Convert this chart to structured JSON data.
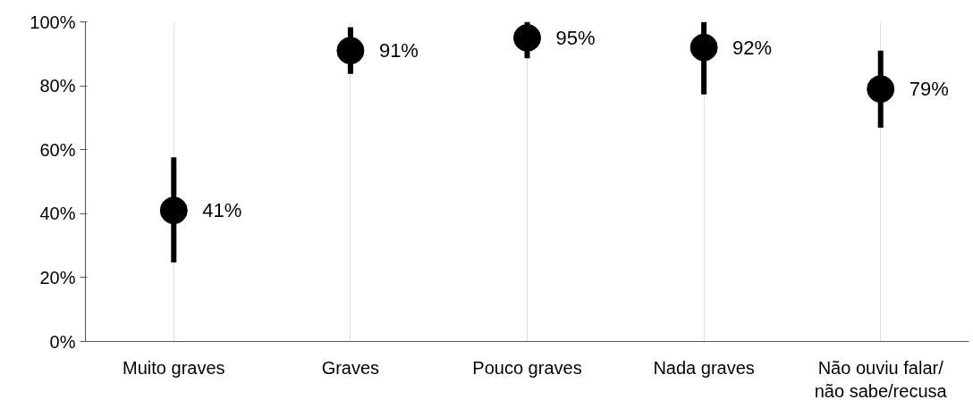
{
  "chart_data": {
    "type": "scatter",
    "categories": [
      "Muito graves",
      "Graves",
      "Pouco graves",
      "Nada graves",
      "Não ouviu falar/\nnão sabe/recusa"
    ],
    "values": [
      41,
      91,
      95,
      92,
      79
    ],
    "errors": [
      [
        24.7,
        57.6
      ],
      [
        83.7,
        98.3
      ],
      [
        88.6,
        100
      ],
      [
        77.3,
        100
      ],
      [
        66.9,
        91
      ]
    ],
    "color": "#000000",
    "marker": "circle",
    "data_labels": true,
    "value_labels": [
      "41%",
      "91%",
      "95%",
      "92%",
      "79%"
    ],
    "ylim": [
      0,
      100
    ],
    "yticks": [
      {
        "value": 0,
        "label": "0%"
      },
      {
        "value": 20,
        "label": "20%"
      },
      {
        "value": 40,
        "label": "40%"
      },
      {
        "value": 60,
        "label": "60%"
      },
      {
        "value": 80,
        "label": "80%"
      },
      {
        "value": 100,
        "label": "100%"
      }
    ],
    "grid": "x"
  }
}
